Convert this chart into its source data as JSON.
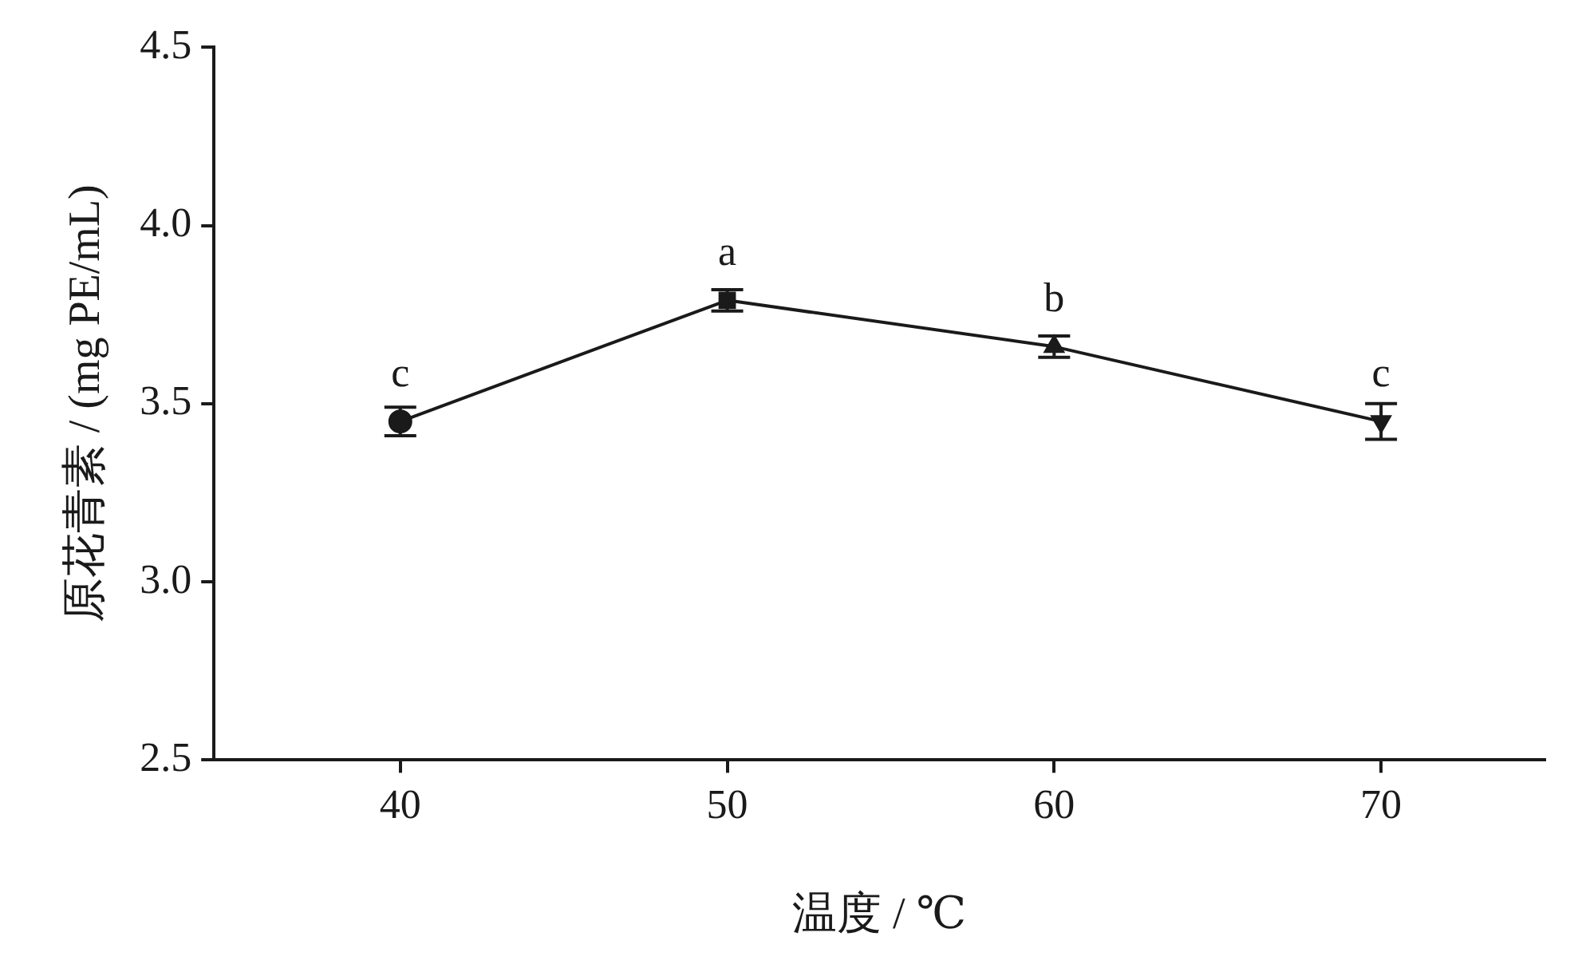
{
  "chart_data": {
    "type": "line",
    "xlabel": "温度 / ℃",
    "ylabel": "原花青素 / (mg PE/mL)",
    "x": [
      40,
      50,
      60,
      70
    ],
    "series": [
      {
        "color": "#1a1a1a",
        "values": [
          3.45,
          3.79,
          3.66,
          3.45
        ],
        "errors": [
          0.04,
          0.03,
          0.03,
          0.05
        ],
        "marker": [
          "circle",
          "square",
          "triangle",
          "triangle-down"
        ]
      }
    ],
    "xlim": [
      34.3,
      75
    ],
    "xticks": [
      40,
      50,
      60,
      70
    ],
    "ylim": [
      2.5,
      4.5
    ],
    "yticks": [
      2.5,
      {
        "value": 3,
        "label": "3.0"
      },
      3.5,
      {
        "value": 4,
        "label": "4.0"
      },
      4.5
    ],
    "annotations": [
      {
        "text": "c",
        "x": 40,
        "y": 3.45
      },
      {
        "text": "a",
        "x": 50,
        "y": 3.79
      },
      {
        "text": "b",
        "x": 60,
        "y": 3.66
      },
      {
        "text": "c",
        "x": 70,
        "y": 3.45
      }
    ],
    "grid": false,
    "legend": false,
    "line_style": "solid"
  }
}
